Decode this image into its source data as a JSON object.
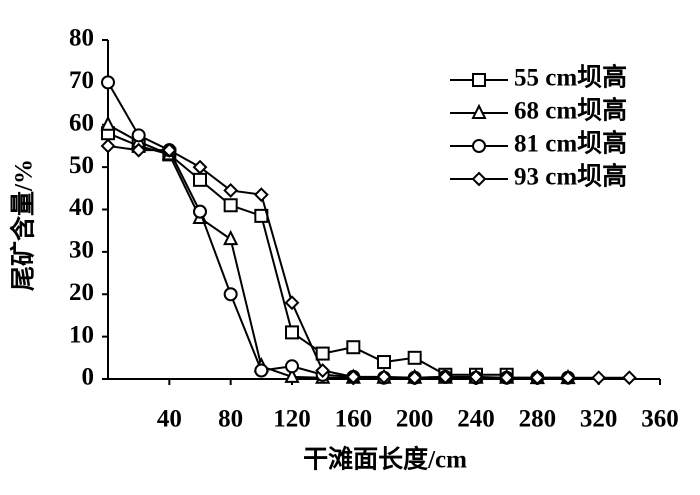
{
  "chart_data": {
    "type": "line",
    "xlabel": "干滩面长度/cm",
    "ylabel": "尾矿含量/%",
    "xlim": [
      0,
      360
    ],
    "ylim": [
      0,
      80
    ],
    "xticks": [
      40,
      80,
      120,
      160,
      200,
      240,
      280,
      320,
      360
    ],
    "yticks": [
      0,
      10,
      20,
      30,
      40,
      50,
      60,
      70,
      80
    ],
    "legend": "upper right",
    "series": [
      {
        "name": "55 cm坝高",
        "color": "#000000",
        "marker": "square",
        "x": [
          0,
          20,
          40,
          60,
          80,
          100,
          120,
          140,
          160,
          180,
          200,
          220,
          240,
          260
        ],
        "values": [
          58,
          55,
          53,
          47,
          41,
          38.5,
          11,
          6,
          7.5,
          4,
          5,
          1,
          1,
          1
        ]
      },
      {
        "name": "68 cm坝高",
        "color": "#000000",
        "marker": "triangle",
        "x": [
          0,
          20,
          40,
          60,
          80,
          100,
          120,
          140,
          160,
          180,
          200,
          220,
          240,
          260,
          280,
          300
        ],
        "values": [
          60,
          56,
          53,
          38,
          33,
          3,
          0.5,
          0.3,
          0.3,
          0.3,
          0.3,
          0.3,
          0.3,
          0.3,
          0.2,
          0.2
        ]
      },
      {
        "name": "81 cm坝高",
        "color": "#000000",
        "marker": "circle",
        "x": [
          0,
          20,
          40,
          60,
          80,
          100,
          120,
          140,
          160,
          180,
          200,
          220,
          240,
          260,
          280,
          300
        ],
        "values": [
          70,
          57.5,
          54,
          39.5,
          20,
          2,
          3,
          1,
          0.5,
          0.3,
          0.3,
          0.5,
          0.3,
          0.3,
          0.3,
          0.3
        ]
      },
      {
        "name": "93 cm坝高",
        "color": "#000000",
        "marker": "diamond",
        "x": [
          0,
          20,
          40,
          60,
          80,
          100,
          120,
          140,
          160,
          180,
          200,
          220,
          240,
          260,
          280,
          300,
          320,
          340
        ],
        "values": [
          55,
          54,
          54,
          50,
          44.5,
          43.5,
          18,
          2,
          0.5,
          0.5,
          0.3,
          0.5,
          0.5,
          0.3,
          0.3,
          0.3,
          0.3,
          0.3
        ]
      }
    ]
  }
}
